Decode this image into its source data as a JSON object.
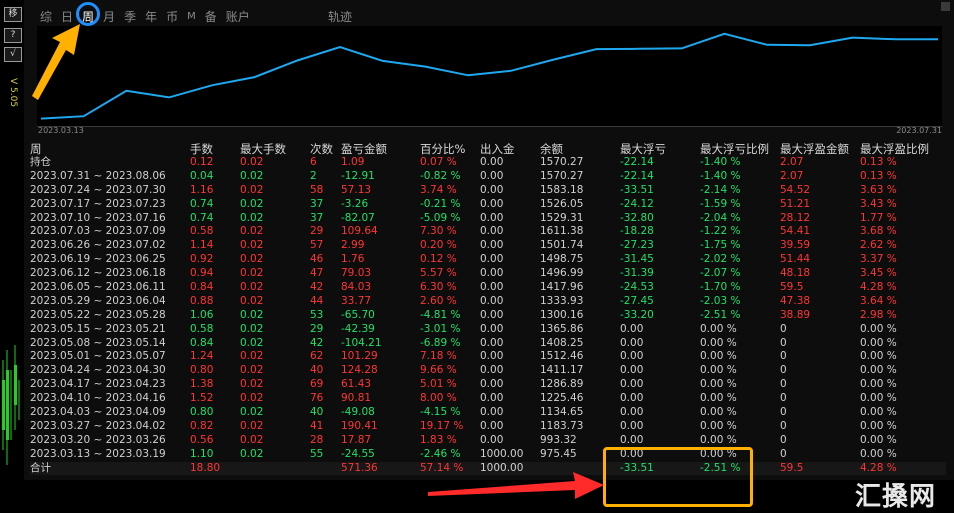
{
  "sidebar": {
    "buttons": [
      "移",
      "?",
      "√"
    ],
    "version": "V 5.05"
  },
  "tabs": [
    "综",
    "日",
    "周",
    "月",
    "季",
    "年",
    "币",
    "M",
    "备",
    "账户"
  ],
  "active_tab": "周",
  "track_label": "轨迹",
  "chart": {
    "start_date": "2023.03.13",
    "end_date": "2023.07.31",
    "line_color": "#1fa8f0",
    "balance": [
      975.45,
      993.32,
      1183.73,
      1134.65,
      1225.46,
      1286.89,
      1411.17,
      1512.46,
      1408.25,
      1365.86,
      1300.16,
      1333.93,
      1417.96,
      1496.99,
      1498.75,
      1501.74,
      1611.38,
      1529.31,
      1526.05,
      1583.18,
      1570.27,
      1570.27
    ],
    "y_range": [
      950,
      1640
    ]
  },
  "table": {
    "headers": [
      "周",
      "手数",
      "最大手数",
      "次数",
      "盈亏金额",
      "百分比%",
      "出入金",
      "余额",
      "最大浮亏",
      "最大浮亏比例",
      "最大浮盈金额",
      "最大浮盈比例"
    ],
    "rows": [
      [
        "持仓",
        "0.12",
        "0.02",
        "6",
        "1.09",
        "0.07 %",
        "0.00",
        "1570.27",
        "-22.14",
        "-1.40 %",
        "2.07",
        "0.13 %"
      ],
      [
        "2023.07.31 ~ 2023.08.06",
        "0.04",
        "0.02",
        "2",
        "-12.91",
        "-0.82 %",
        "0.00",
        "1570.27",
        "-22.14",
        "-1.40 %",
        "2.07",
        "0.13 %"
      ],
      [
        "2023.07.24 ~ 2023.07.30",
        "1.16",
        "0.02",
        "58",
        "57.13",
        "3.74 %",
        "0.00",
        "1583.18",
        "-33.51",
        "-2.14 %",
        "54.52",
        "3.63 %"
      ],
      [
        "2023.07.17 ~ 2023.07.23",
        "0.74",
        "0.02",
        "37",
        "-3.26",
        "-0.21 %",
        "0.00",
        "1526.05",
        "-24.12",
        "-1.59 %",
        "51.21",
        "3.43 %"
      ],
      [
        "2023.07.10 ~ 2023.07.16",
        "0.74",
        "0.02",
        "37",
        "-82.07",
        "-5.09 %",
        "0.00",
        "1529.31",
        "-32.80",
        "-2.04 %",
        "28.12",
        "1.77 %"
      ],
      [
        "2023.07.03 ~ 2023.07.09",
        "0.58",
        "0.02",
        "29",
        "109.64",
        "7.30 %",
        "0.00",
        "1611.38",
        "-18.28",
        "-1.22 %",
        "54.41",
        "3.68 %"
      ],
      [
        "2023.06.26 ~ 2023.07.02",
        "1.14",
        "0.02",
        "57",
        "2.99",
        "0.20 %",
        "0.00",
        "1501.74",
        "-27.23",
        "-1.75 %",
        "39.59",
        "2.62 %"
      ],
      [
        "2023.06.19 ~ 2023.06.25",
        "0.92",
        "0.02",
        "46",
        "1.76",
        "0.12 %",
        "0.00",
        "1498.75",
        "-31.45",
        "-2.02 %",
        "51.44",
        "3.37 %"
      ],
      [
        "2023.06.12 ~ 2023.06.18",
        "0.94",
        "0.02",
        "47",
        "79.03",
        "5.57 %",
        "0.00",
        "1496.99",
        "-31.39",
        "-2.07 %",
        "48.18",
        "3.45 %"
      ],
      [
        "2023.06.05 ~ 2023.06.11",
        "0.84",
        "0.02",
        "42",
        "84.03",
        "6.30 %",
        "0.00",
        "1417.96",
        "-24.53",
        "-1.70 %",
        "59.5",
        "4.28 %"
      ],
      [
        "2023.05.29 ~ 2023.06.04",
        "0.88",
        "0.02",
        "44",
        "33.77",
        "2.60 %",
        "0.00",
        "1333.93",
        "-27.45",
        "-2.03 %",
        "47.38",
        "3.64 %"
      ],
      [
        "2023.05.22 ~ 2023.05.28",
        "1.06",
        "0.02",
        "53",
        "-65.70",
        "-4.81 %",
        "0.00",
        "1300.16",
        "-33.20",
        "-2.51 %",
        "38.89",
        "2.98 %"
      ],
      [
        "2023.05.15 ~ 2023.05.21",
        "0.58",
        "0.02",
        "29",
        "-42.39",
        "-3.01 %",
        "0.00",
        "1365.86",
        "0.00",
        "0.00 %",
        "0",
        "0.00 %"
      ],
      [
        "2023.05.08 ~ 2023.05.14",
        "0.84",
        "0.02",
        "42",
        "-104.21",
        "-6.89 %",
        "0.00",
        "1408.25",
        "0.00",
        "0.00 %",
        "0",
        "0.00 %"
      ],
      [
        "2023.05.01 ~ 2023.05.07",
        "1.24",
        "0.02",
        "62",
        "101.29",
        "7.18 %",
        "0.00",
        "1512.46",
        "0.00",
        "0.00 %",
        "0",
        "0.00 %"
      ],
      [
        "2023.04.24 ~ 2023.04.30",
        "0.80",
        "0.02",
        "40",
        "124.28",
        "9.66 %",
        "0.00",
        "1411.17",
        "0.00",
        "0.00 %",
        "0",
        "0.00 %"
      ],
      [
        "2023.04.17 ~ 2023.04.23",
        "1.38",
        "0.02",
        "69",
        "61.43",
        "5.01 %",
        "0.00",
        "1286.89",
        "0.00",
        "0.00 %",
        "0",
        "0.00 %"
      ],
      [
        "2023.04.10 ~ 2023.04.16",
        "1.52",
        "0.02",
        "76",
        "90.81",
        "8.00 %",
        "0.00",
        "1225.46",
        "0.00",
        "0.00 %",
        "0",
        "0.00 %"
      ],
      [
        "2023.04.03 ~ 2023.04.09",
        "0.80",
        "0.02",
        "40",
        "-49.08",
        "-4.15 %",
        "0.00",
        "1134.65",
        "0.00",
        "0.00 %",
        "0",
        "0.00 %"
      ],
      [
        "2023.03.27 ~ 2023.04.02",
        "0.82",
        "0.02",
        "41",
        "190.41",
        "19.17 %",
        "0.00",
        "1183.73",
        "0.00",
        "0.00 %",
        "0",
        "0.00 %"
      ],
      [
        "2023.03.20 ~ 2023.03.26",
        "0.56",
        "0.02",
        "28",
        "17.87",
        "1.83 %",
        "0.00",
        "993.32",
        "0.00",
        "0.00 %",
        "0",
        "0.00 %"
      ],
      [
        "2023.03.13 ~ 2023.03.19",
        "1.10",
        "0.02",
        "55",
        "-24.55",
        "-2.46 %",
        "1000.00",
        "975.45",
        "0.00",
        "0.00 %",
        "0",
        "0.00 %"
      ]
    ],
    "total": [
      "合计",
      "18.80",
      "",
      "",
      "571.36",
      "57.14 %",
      "1000.00",
      "",
      "-33.51",
      "-2.51 %",
      "59.5",
      "4.28 %"
    ]
  },
  "watermark": "汇搡网",
  "colors": {
    "positive": "#ff3535",
    "negative": "#22e06a",
    "annotation_circle": "#1d8fff",
    "annotation_box": "#ffb000",
    "arrow": "#ff2a2a"
  }
}
